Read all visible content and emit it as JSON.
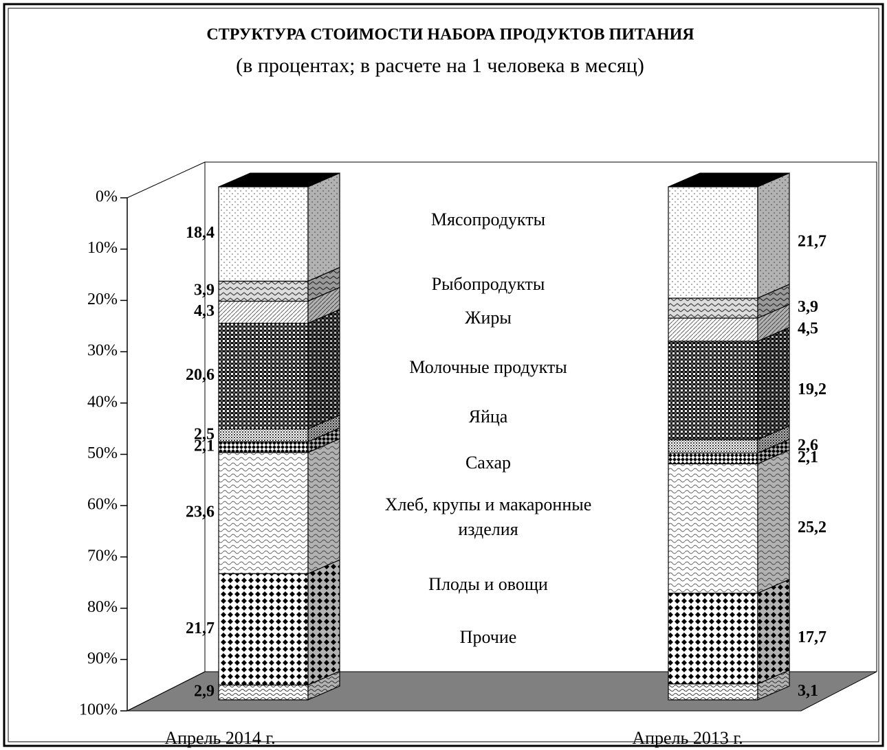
{
  "chart_data": {
    "type": "stacked-bar-3d",
    "title": "СТРУКТУРА СТОИМОСТИ НАБОРА ПРОДУКТОВ ПИТАНИЯ",
    "subtitle": "(в процентах; в расчете на 1 человека в месяц)",
    "categories": [
      "Апрель 2014 г.",
      "Апрель 2013 г."
    ],
    "ylim": [
      0,
      100
    ],
    "y_reversed": true,
    "yticks": [
      {
        "value": 0,
        "label": "0%"
      },
      {
        "value": 10,
        "label": "10%"
      },
      {
        "value": 20,
        "label": "20%"
      },
      {
        "value": 30,
        "label": "30%"
      },
      {
        "value": 40,
        "label": "40%"
      },
      {
        "value": 50,
        "label": "50%"
      },
      {
        "value": 60,
        "label": "60%"
      },
      {
        "value": 70,
        "label": "70%"
      },
      {
        "value": 80,
        "label": "80%"
      },
      {
        "value": 90,
        "label": "90%"
      },
      {
        "value": 100,
        "label": "100%"
      }
    ],
    "series": [
      {
        "name": "Мясопродукты",
        "color": "#ffffff",
        "values": [
          18.4,
          21.7
        ],
        "value_labels": [
          "18,4",
          "21,7"
        ]
      },
      {
        "name": "Рыбопродукты",
        "color": "#dddddd",
        "values": [
          3.9,
          3.9
        ],
        "value_labels": [
          "3,9",
          "3,9"
        ]
      },
      {
        "name": "Жиры",
        "color": "#eeeeee",
        "values": [
          4.3,
          4.5
        ],
        "value_labels": [
          "4,3",
          "4,5"
        ]
      },
      {
        "name": "Молочные продукты",
        "color": "#333333",
        "values": [
          20.6,
          19.2
        ],
        "value_labels": [
          "20,6",
          "19,2"
        ]
      },
      {
        "name": "Яйца",
        "color": "#888888",
        "values": [
          2.5,
          2.6
        ],
        "value_labels": [
          "2,5",
          "2,6"
        ]
      },
      {
        "name": "Сахар",
        "color": "#444444",
        "values": [
          2.1,
          2.1
        ],
        "value_labels": [
          "2,1",
          "2,1"
        ]
      },
      {
        "name": "Хлеб, крупы и макаронные изделия",
        "color": "#eeeeee",
        "values": [
          23.6,
          25.2
        ],
        "value_labels": [
          "23,6",
          "25,2"
        ]
      },
      {
        "name": "Плоды и овощи",
        "color": "#222222",
        "values": [
          21.7,
          17.7
        ],
        "value_labels": [
          "21,7",
          "17,7"
        ]
      },
      {
        "name": "Прочие",
        "color": "#dddddd",
        "values": [
          2.9,
          3.1
        ],
        "value_labels": [
          "2,9",
          "3,1"
        ]
      }
    ]
  }
}
